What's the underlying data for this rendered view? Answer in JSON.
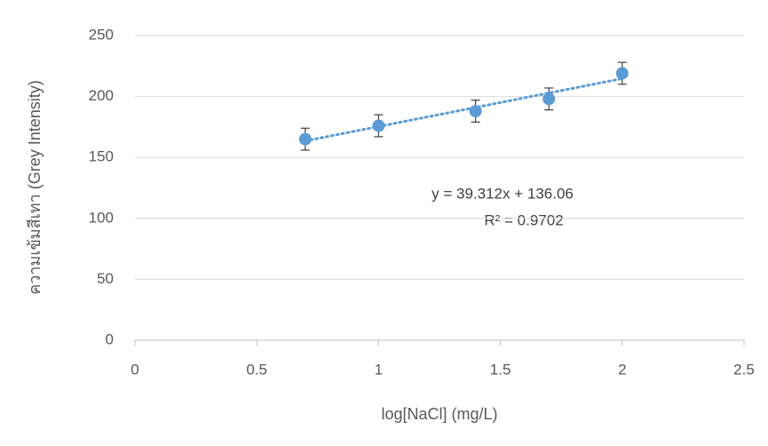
{
  "chart_data": {
    "type": "scatter",
    "x_label": "log[NaCl] (mg/L)",
    "y_label": "ความเข้มสีเทา (Grey Intensity)",
    "series": [
      {
        "x": [
          0.699,
          1,
          1.398,
          1.699,
          2
        ],
        "values": [
          165,
          176,
          188,
          198,
          219
        ],
        "errors": [
          9,
          9,
          9,
          9,
          9
        ],
        "color": "#5b9bd5"
      }
    ],
    "trendline": {
      "slope": 39.312,
      "intercept": 136.06,
      "color": "#5b9bd5"
    },
    "annotations": [
      "y = 39.312x + 136.06",
      "R² = 0.9702"
    ],
    "xlim": [
      0,
      2.5
    ],
    "xticks": [
      0,
      0.5,
      1,
      1.5,
      2,
      2.5
    ],
    "ylim": [
      0,
      250
    ],
    "yticks": [
      0,
      50,
      100,
      150,
      200,
      250
    ],
    "grid": true
  }
}
